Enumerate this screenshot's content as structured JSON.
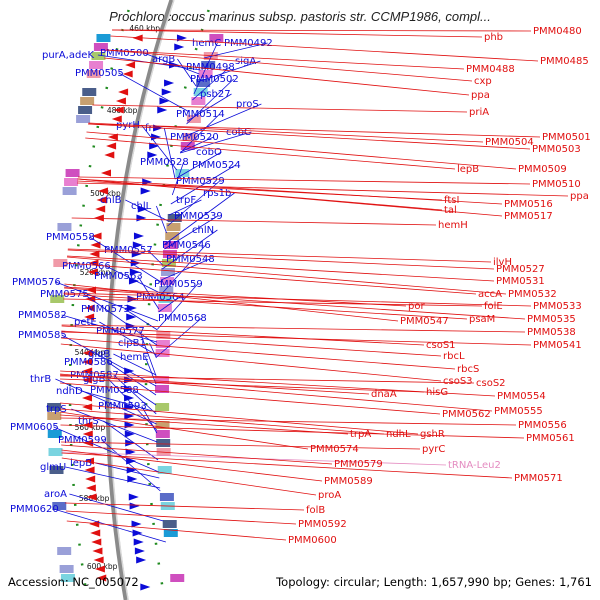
{
  "title": "Prochlorococcus marinus subsp. pastoris str. CCMP1986, compl...",
  "footer": {
    "accession": "Accession: NC_005072",
    "summary": "Topology: circular; Length: 1,657,990 bp; Genes: 1,761"
  },
  "colors": {
    "forward": "#0b0bd8",
    "reverse": "#e01010",
    "trna": "#e48bc0",
    "backbone": "#8a8a8a",
    "tick_line": "#1f8a1f"
  },
  "ticks": [
    "460 kbp",
    "480 kbp",
    "500 kbp",
    "520 kbp",
    "540 kbp",
    "560 kbp",
    "580 kbp",
    "600 kbp"
  ],
  "left_labels": [
    "purA,adeK",
    "PMM0500",
    "argB",
    "PMM0498",
    "PMM0505",
    "PMM0502",
    "hemC",
    "PMM0492",
    "sigA",
    "psb27",
    "proS",
    "PMM0514",
    "pyrH",
    "frr",
    "PMM0520",
    "cobC",
    "cobO",
    "PMM0528",
    "PMM0524",
    "PMM0529",
    "rps1b",
    "trpF",
    "chlB",
    "chlL",
    "PMM0539",
    "chlN",
    "PMM0558",
    "PMM0546",
    "PMM0557",
    "PMM0548",
    "PMM0566",
    "PMM0563",
    "PMM0576",
    "PMM0559",
    "PMM0575",
    "PMM0564",
    "PMM0573",
    "PMM0582",
    "petE",
    "PMM0568",
    "PMM0577",
    "PMM0585",
    "clpB1",
    "glgB",
    "hemE",
    "PMM0586",
    "PMM0587",
    "thrB",
    "glgB",
    "PMM0588",
    "ndhD",
    "PMM0593",
    "trpS",
    "thrS",
    "PMM0605",
    "PMM0599",
    "lepB",
    "glmU",
    "aroA",
    "PMM0620"
  ],
  "right_labels": [
    "PMM0480",
    "phb",
    "PMM0488",
    "PMM0485",
    "cxp",
    "ppa",
    "priA",
    "PMM0501",
    "PMM0504",
    "PMM0503",
    "lepB",
    "PMM0509",
    "PMM0510",
    "ppa",
    "ftsI",
    "PMM0516",
    "tal",
    "PMM0517",
    "hemH",
    "ilvH",
    "PMM0527",
    "PMM0531",
    "accA",
    "PMM0532",
    "folE",
    "PMM0533",
    "por",
    "psaM",
    "PMM0535",
    "PMM0547",
    "PMM0538",
    "PMM0541",
    "csoS1",
    "rbcL",
    "rbcS",
    "csoS3",
    "csoS2",
    "hisG",
    "dnaA",
    "PMM0554",
    "PMM0562",
    "PMM0555",
    "PMM0556",
    "PMM0561",
    "trpA",
    "ndhL",
    "gshR",
    "PMM0574",
    "pyrC",
    "tRNA-Leu2",
    "PMM0579",
    "PMM0571",
    "PMM0589",
    "proA",
    "folB",
    "PMM0592",
    "PMM0600"
  ]
}
